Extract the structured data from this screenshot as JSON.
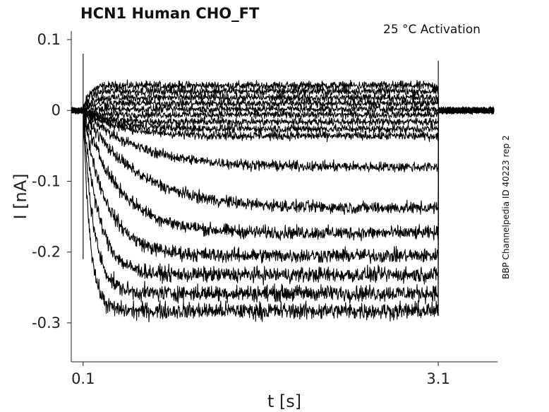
{
  "chart_data": {
    "type": "line",
    "title": "HCN1  Human  CHO_FT",
    "annotation": "25 °C  Activation",
    "side_label": "BBP Channelpedia ID 40223 rep 2",
    "xlabel": "t [s]",
    "ylabel": "I [nA]",
    "xlim": [
      0.0,
      3.6
    ],
    "ylim": [
      -0.355,
      0.112
    ],
    "x_ticks": [
      {
        "value": 0.1,
        "label": "0.1"
      },
      {
        "value": 3.1,
        "label": "3.1"
      }
    ],
    "y_ticks": [
      {
        "value": 0.1,
        "label": "0.1"
      },
      {
        "value": 0.0,
        "label": "0"
      },
      {
        "value": -0.1,
        "label": "-0.1"
      },
      {
        "value": -0.2,
        "label": "-0.2"
      },
      {
        "value": -0.3,
        "label": "-0.3"
      }
    ],
    "pulse": {
      "start": 0.1,
      "end": 3.1
    },
    "grid": false,
    "legend": "none",
    "series": [
      {
        "baseline": 0.0,
        "steady": 0.035,
        "tau": 0.05
      },
      {
        "baseline": 0.0,
        "steady": 0.027,
        "tau": 0.05
      },
      {
        "baseline": 0.0,
        "steady": 0.018,
        "tau": 0.05
      },
      {
        "baseline": 0.0,
        "steady": 0.01,
        "tau": 0.05
      },
      {
        "baseline": 0.0,
        "steady": 0.002,
        "tau": 0.05
      },
      {
        "baseline": 0.0,
        "steady": -0.006,
        "tau": 0.08
      },
      {
        "baseline": 0.0,
        "steady": -0.016,
        "tau": 0.15
      },
      {
        "baseline": 0.0,
        "steady": -0.026,
        "tau": 0.25
      },
      {
        "baseline": 0.0,
        "steady": -0.036,
        "tau": 0.3
      },
      {
        "baseline": 0.0,
        "steady": -0.08,
        "tau": 0.45
      },
      {
        "baseline": 0.0,
        "steady": -0.138,
        "tau": 0.45
      },
      {
        "baseline": 0.0,
        "steady": -0.173,
        "tau": 0.3
      },
      {
        "baseline": 0.0,
        "steady": -0.205,
        "tau": 0.2
      },
      {
        "baseline": 0.0,
        "steady": -0.232,
        "tau": 0.13
      },
      {
        "baseline": 0.0,
        "steady": -0.258,
        "tau": 0.09
      },
      {
        "baseline": 0.0,
        "steady": -0.283,
        "tau": 0.06
      }
    ]
  }
}
